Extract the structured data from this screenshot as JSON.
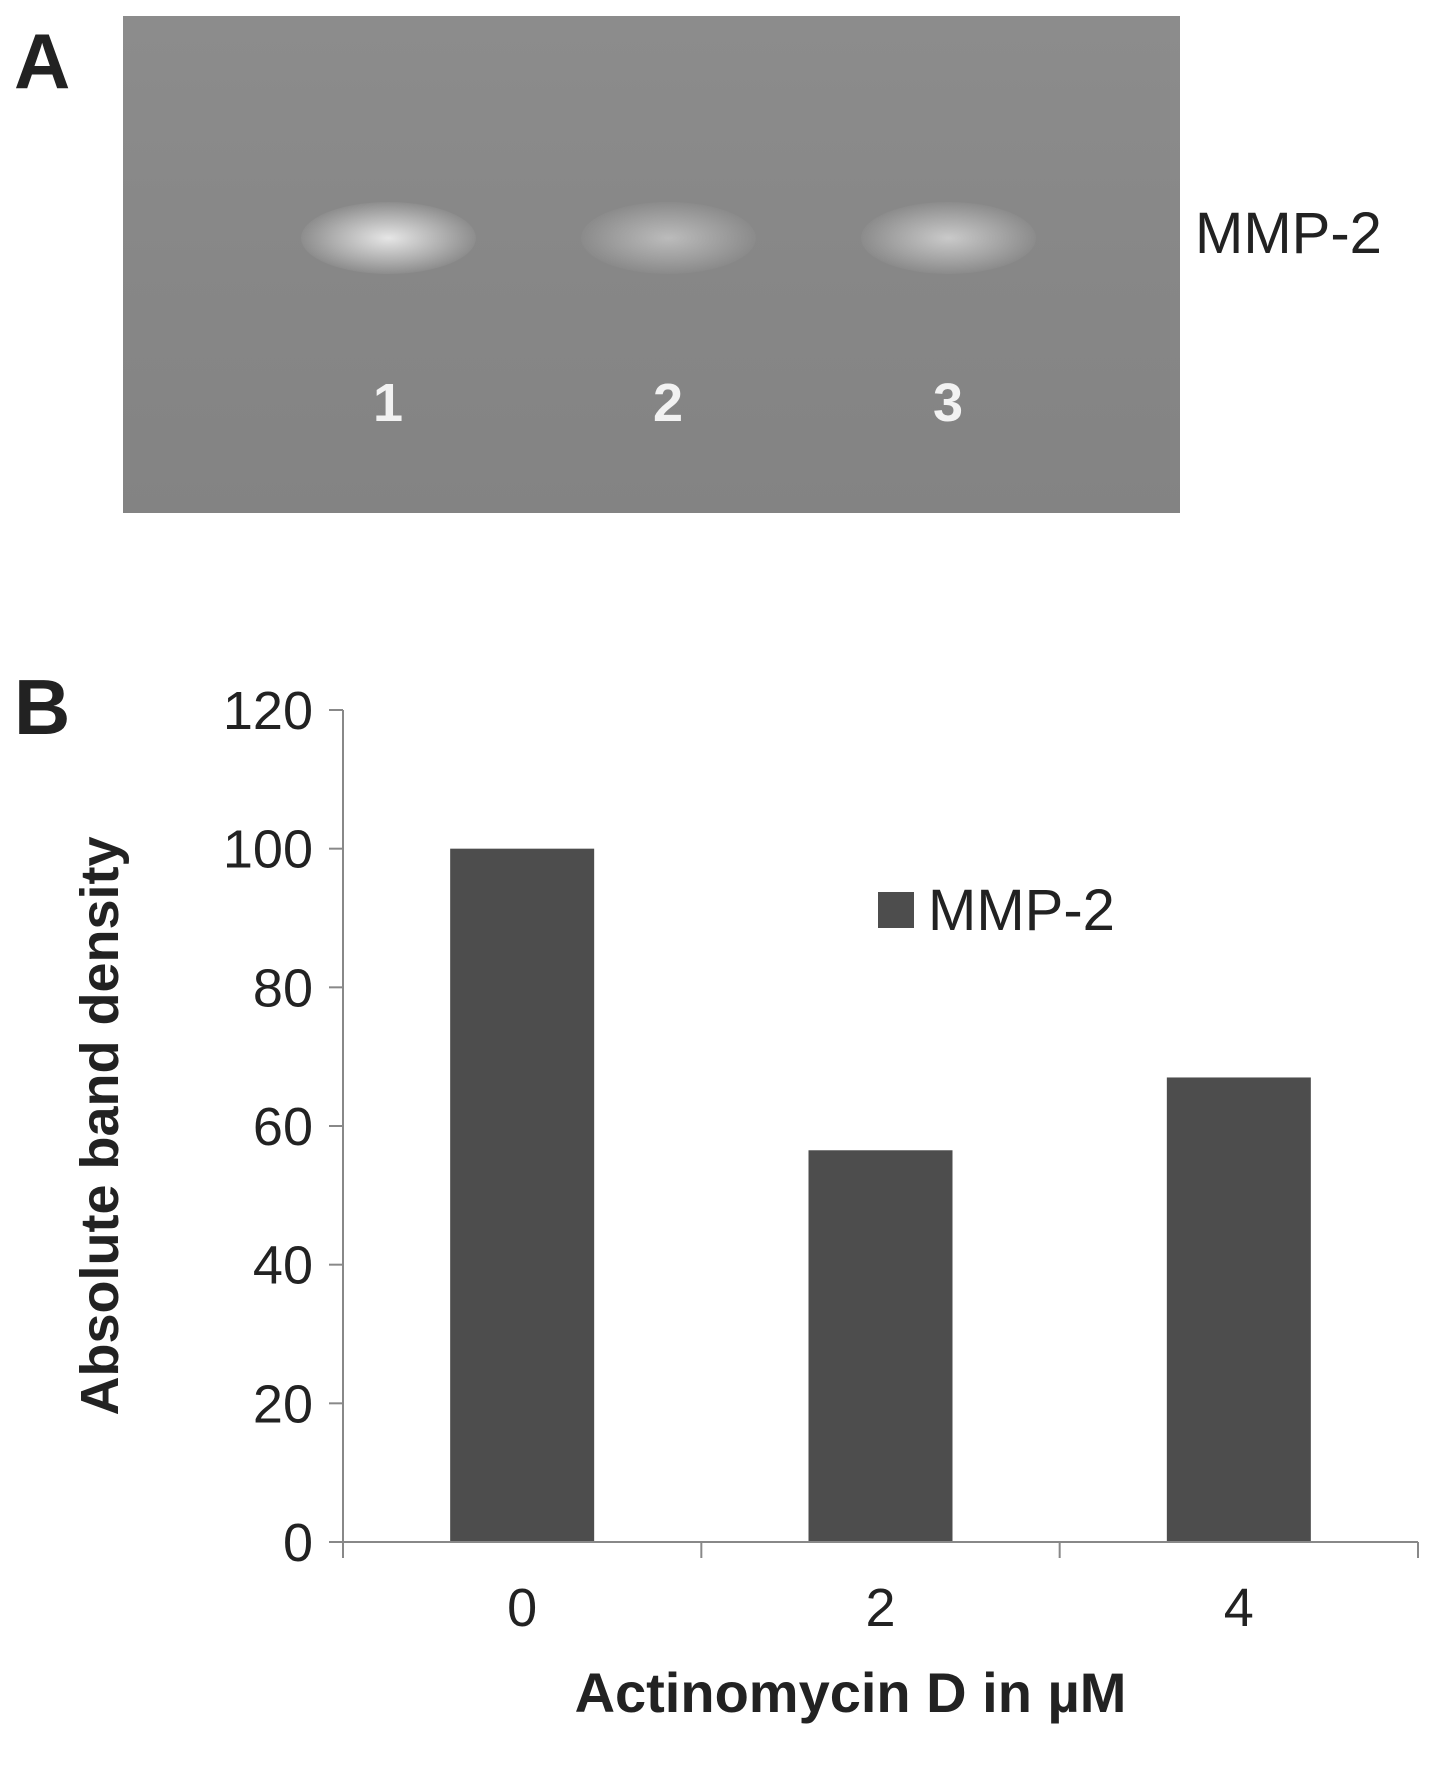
{
  "panel_a": {
    "letter": "A",
    "marker_label": "MMP-2",
    "lanes": [
      {
        "label": "1",
        "band_intensity": 1.0
      },
      {
        "label": "2",
        "band_intensity": 0.55
      },
      {
        "label": "3",
        "band_intensity": 0.7
      }
    ]
  },
  "panel_b": {
    "letter": "B"
  },
  "chart_data": {
    "type": "bar",
    "categories": [
      "0",
      "2",
      "4"
    ],
    "series": [
      {
        "name": "MMP-2",
        "values": [
          100,
          56.5,
          67
        ]
      }
    ],
    "title": "",
    "xlabel": "Actinomycin D in µM",
    "ylabel": "Absolute band density",
    "ylim": [
      0,
      120
    ],
    "yticks": [
      "0",
      "20",
      "40",
      "60",
      "80",
      "100",
      "120"
    ],
    "grid": false,
    "legend": "upper-right",
    "bar_color": "#4d4d4d"
  }
}
